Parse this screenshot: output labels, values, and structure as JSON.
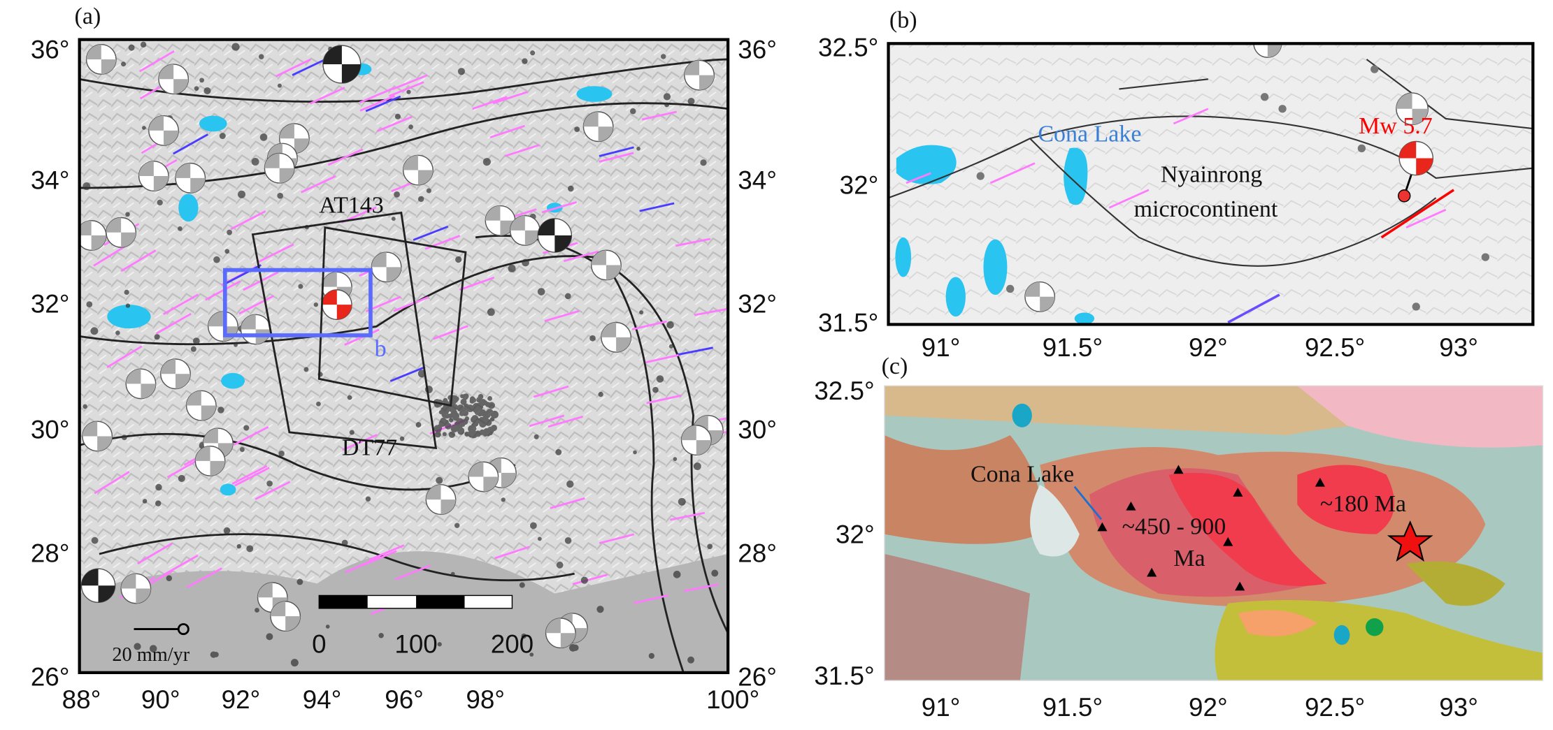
{
  "panels": [
    {
      "label": "(a)",
      "yticks_left": [
        "36°",
        "34°",
        "32°",
        "30°",
        "28°",
        "26°"
      ],
      "yticks_right": [
        "36°",
        "34°",
        "32°",
        "30°",
        "28°",
        "26°"
      ],
      "xticks": [
        "88°",
        "90°",
        "92°",
        "94°",
        "96°",
        "98°",
        "100°"
      ],
      "annotations": [
        "AT143",
        "DT77",
        "b"
      ],
      "scale_bar": [
        "0",
        "100",
        "200"
      ],
      "velocity_legend": "20 mm/yr"
    },
    {
      "label": "(b)",
      "yticks": [
        "32.5°",
        "32°",
        "31.5°"
      ],
      "xticks": [
        "91°",
        "91.5°",
        "92°",
        "92.5°",
        "93°"
      ],
      "annotations": [
        "Cona Lake",
        "Mw 5.7",
        "Nyainrong",
        "microcontinent"
      ]
    },
    {
      "label": "(c)",
      "yticks": [
        "32.5°",
        "32°",
        "31.5°"
      ],
      "xticks": [
        "91°",
        "91.5°",
        "92°",
        "92.5°",
        "93°"
      ],
      "annotations": [
        "Cona Lake",
        "~450 - 900",
        "Ma",
        "~180 Ma"
      ]
    }
  ]
}
